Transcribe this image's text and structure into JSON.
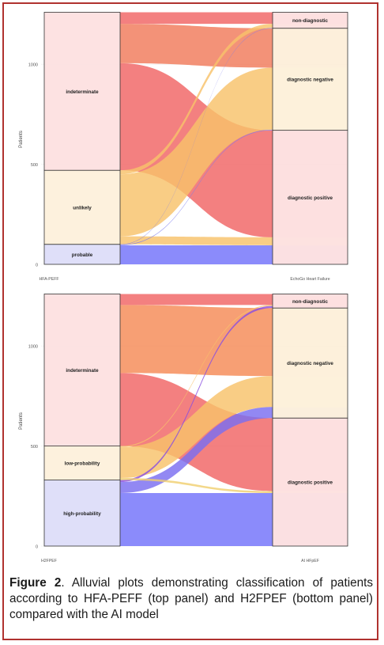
{
  "chart_data": [
    {
      "type": "alluvial",
      "ylabel": "Patients",
      "yticks": [
        0,
        500,
        1000
      ],
      "ymax": 1250,
      "left_axis": "HFA-PEFF",
      "right_axis": "EchoGo Heart Failure",
      "left_strata": [
        {
          "label": "probable",
          "size": 100,
          "color": "#dcdcf8"
        },
        {
          "label": "unlikely",
          "size": 370,
          "color": "#fdf0da"
        },
        {
          "label": "indeterminate",
          "size": 790,
          "color": "#fde0e0"
        }
      ],
      "right_strata": [
        {
          "label": "diagnostic positive",
          "size": 670,
          "color": "#fde0e0"
        },
        {
          "label": "diagnostic negative",
          "size": 510,
          "color": "#fdf0da"
        },
        {
          "label": "non-diagnostic",
          "size": 80,
          "color": "#fde0e0"
        }
      ],
      "flows": [
        {
          "from": "probable",
          "to": "diagnostic positive",
          "value": 95,
          "color": "#7272fa"
        },
        {
          "from": "probable",
          "to": "diagnostic negative",
          "value": 3,
          "color": "#7a7aee"
        },
        {
          "from": "probable",
          "to": "non-diagnostic",
          "value": 2,
          "color": "#7a7aee"
        },
        {
          "from": "unlikely",
          "to": "diagnostic positive",
          "value": 40,
          "color": "#f8c26a"
        },
        {
          "from": "unlikely",
          "to": "diagnostic negative",
          "value": 310,
          "color": "#f8c26a"
        },
        {
          "from": "unlikely",
          "to": "non-diagnostic",
          "value": 20,
          "color": "#f8c26a"
        },
        {
          "from": "indeterminate",
          "to": "diagnostic positive",
          "value": 535,
          "color": "#f06464"
        },
        {
          "from": "indeterminate",
          "to": "diagnostic negative",
          "value": 197,
          "color": "#f07a5a"
        },
        {
          "from": "indeterminate",
          "to": "non-diagnostic",
          "value": 58,
          "color": "#f06464"
        }
      ]
    },
    {
      "type": "alluvial",
      "ylabel": "Patients",
      "yticks": [
        0,
        500,
        1000
      ],
      "ymax": 1250,
      "left_axis": "H2FPEF",
      "right_axis": "AI HFpEF",
      "left_strata": [
        {
          "label": "high-probability",
          "size": 330,
          "color": "#dcdcf8"
        },
        {
          "label": "low-probability",
          "size": 170,
          "color": "#fdf0da"
        },
        {
          "label": "indeterminate",
          "size": 760,
          "color": "#fde0e0"
        }
      ],
      "right_strata": [
        {
          "label": "diagnostic positive",
          "size": 640,
          "color": "#fde0e0"
        },
        {
          "label": "diagnostic negative",
          "size": 550,
          "color": "#fdf0da"
        },
        {
          "label": "non-diagnostic",
          "size": 70,
          "color": "#fde0e0"
        }
      ],
      "flows": [
        {
          "from": "high-probability",
          "to": "diagnostic positive",
          "value": 265,
          "color": "#7272fa"
        },
        {
          "from": "high-probability",
          "to": "diagnostic negative",
          "value": 55,
          "color": "#7a6ef0"
        },
        {
          "from": "high-probability",
          "to": "non-diagnostic",
          "value": 10,
          "color": "#8a4ee0"
        },
        {
          "from": "low-probability",
          "to": "diagnostic positive",
          "value": 10,
          "color": "#f0d070"
        },
        {
          "from": "low-probability",
          "to": "diagnostic negative",
          "value": 155,
          "color": "#f8c26a"
        },
        {
          "from": "low-probability",
          "to": "non-diagnostic",
          "value": 5,
          "color": "#f8c26a"
        },
        {
          "from": "indeterminate",
          "to": "diagnostic positive",
          "value": 365,
          "color": "#f06464"
        },
        {
          "from": "indeterminate",
          "to": "diagnostic negative",
          "value": 340,
          "color": "#f58a55"
        },
        {
          "from": "indeterminate",
          "to": "non-diagnostic",
          "value": 55,
          "color": "#f06464"
        }
      ]
    }
  ],
  "caption": {
    "label": "Figure 2",
    "text": ". Alluvial plots demonstrating classification of patients according to HFA-PEFF (top panel) and H2FPEF (bottom panel) compared with the AI model"
  }
}
